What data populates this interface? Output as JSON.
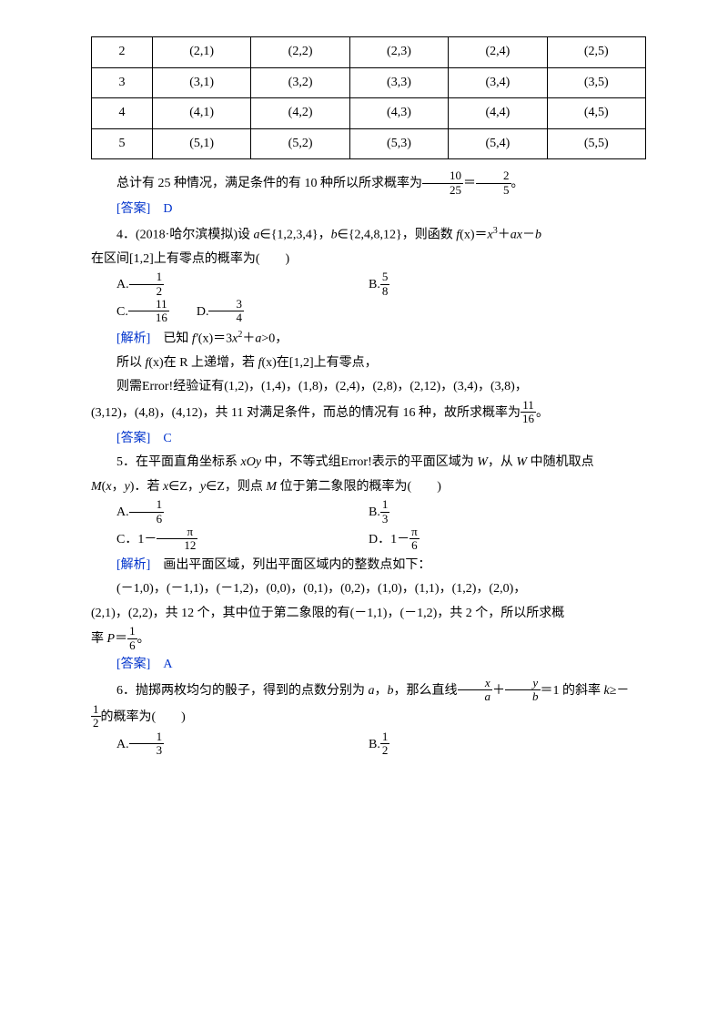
{
  "table": {
    "rows": [
      [
        "2",
        "(2,1)",
        "(2,2)",
        "(2,3)",
        "(2,4)",
        "(2,5)"
      ],
      [
        "3",
        "(3,1)",
        "(3,2)",
        "(3,3)",
        "(3,4)",
        "(3,5)"
      ],
      [
        "4",
        "(4,1)",
        "(4,2)",
        "(4,3)",
        "(4,4)",
        "(4,5)"
      ],
      [
        "5",
        "(5,1)",
        "(5,2)",
        "(5,3)",
        "(5,4)",
        "(5,5)"
      ]
    ]
  },
  "q3": {
    "summary_pre": "总计有 25 种情况，满足条件的有 10 种所以所求概率为",
    "frac1_num": "10",
    "frac1_den": "25",
    "eq": "＝",
    "frac2_num": "2",
    "frac2_den": "5",
    "period": "。",
    "ans_label": "[答案]　D"
  },
  "q4": {
    "stem_pre": "4．(2018·哈尔滨模拟)设 ",
    "stem_mid1": "a",
    "stem_mid2": "∈{1,2,3,4}，",
    "stem_mid3": "b",
    "stem_mid4": "∈{2,4,8,12}，则函数 ",
    "stem_mid5": "f",
    "stem_mid6": "(x)＝",
    "stem_mid7": "x",
    "sup1": "3",
    "stem_mid8": "＋",
    "stem_mid9": "ax",
    "stem_mid10": "－",
    "stem_mid11": "b",
    "stem_line2": "在区间[1,2]上有零点的概率为(　　)",
    "optA_label": "A.",
    "optA_num": "1",
    "optA_den": "2",
    "optB_label": "B.",
    "optB_num": "5",
    "optB_den": "8",
    "optC_label": "C.",
    "optC_num": "11",
    "optC_den": "16",
    "optD_label": "D.",
    "optD_num": "3",
    "optD_den": "4",
    "parse_label": "[解析]　",
    "parse_l1_pre": "已知 ",
    "parse_l1_f": "f′",
    "parse_l1_mid": "(x)＝3",
    "parse_l1_x": "x",
    "parse_l1_sup": "2",
    "parse_l1_plus": "＋",
    "parse_l1_a": "a",
    "parse_l1_end": ">0，",
    "parse_l2_pre": "所以 ",
    "parse_l2_f": "f",
    "parse_l2_mid": "(x)在 R 上递增，若 ",
    "parse_l2_f2": "f",
    "parse_l2_end": "(x)在[1,2]上有零点，",
    "parse_l3": "则需Error!经验证有(1,2)，(1,4)，(1,8)，(2,4)，(2,8)，(2,12)，(3,4)，(3,8)，",
    "parse_l4_pre": "(3,12)，(4,8)，(4,12)，共 11 对满足条件，而总的情况有 16 种，故所求概率为",
    "parse_l4_num": "11",
    "parse_l4_den": "16",
    "parse_l4_end": "。",
    "ans_label": "[答案]　C"
  },
  "q5": {
    "stem_l1_pre": "5．在平面直角坐标系 ",
    "stem_l1_xoy": "xOy",
    "stem_l1_mid": " 中，不等式组Error!表示的平面区域为 ",
    "stem_l1_w": "W",
    "stem_l1_mid2": "，从 ",
    "stem_l1_w2": "W",
    "stem_l1_end": " 中随机取点",
    "stem_l2_m": "M",
    "stem_l2_mid1": "(",
    "stem_l2_x": "x",
    "stem_l2_comma": "，",
    "stem_l2_y": "y",
    "stem_l2_mid2": ")．若 ",
    "stem_l2_x2": "x",
    "stem_l2_mid3": "∈Z，",
    "stem_l2_y2": "y",
    "stem_l2_mid4": "∈Z，则点 ",
    "stem_l2_m2": "M",
    "stem_l2_end": " 位于第二象限的概率为(　　)",
    "optA_label": "A.",
    "optA_num": "1",
    "optA_den": "6",
    "optB_label": "B.",
    "optB_num": "1",
    "optB_den": "3",
    "optC_label": "C．1－",
    "optC_num": "π",
    "optC_den": "12",
    "optD_label": "D．1－",
    "optD_num": "π",
    "optD_den": "6",
    "parse_label": "[解析]　",
    "parse_l1": "画出平面区域，列出平面区域内的整数点如下：",
    "parse_l2": "(－1,0)，(－1,1)，(－1,2)，(0,0)，(0,1)，(0,2)，(1,0)，(1,1)，(1,2)，(2,0)，",
    "parse_l3_pre": "(2,1)，(2,2)，共 12 个，其中位于第二象限的有(－1,1)，(－1,2)，共 2 个，所以所求概",
    "parse_l4_pre": "率 ",
    "parse_l4_p": "P",
    "parse_l4_eq": "＝",
    "parse_l4_num": "1",
    "parse_l4_den": "6",
    "parse_l4_end": "。",
    "ans_label": "[答案]　A"
  },
  "q6": {
    "stem_l1_pre": "6．抛掷两枚均匀的骰子，得到的点数分别为 ",
    "stem_l1_a": "a",
    "stem_l1_mid1": "，",
    "stem_l1_b": "b",
    "stem_l1_mid2": "，那么直线",
    "stem_frac1_num": "x",
    "stem_frac1_den": "a",
    "stem_plus": "＋",
    "stem_frac2_num": "y",
    "stem_frac2_den": "b",
    "stem_l1_mid3": "＝1 的斜率 ",
    "stem_l1_k": "k",
    "stem_l1_end": "≥－",
    "stem_l2_num": "1",
    "stem_l2_den": "2",
    "stem_l2_end": "的概率为(　　)",
    "optA_label": "A.",
    "optA_num": "1",
    "optA_den": "3",
    "optB_label": "B.",
    "optB_num": "1",
    "optB_den": "2"
  }
}
